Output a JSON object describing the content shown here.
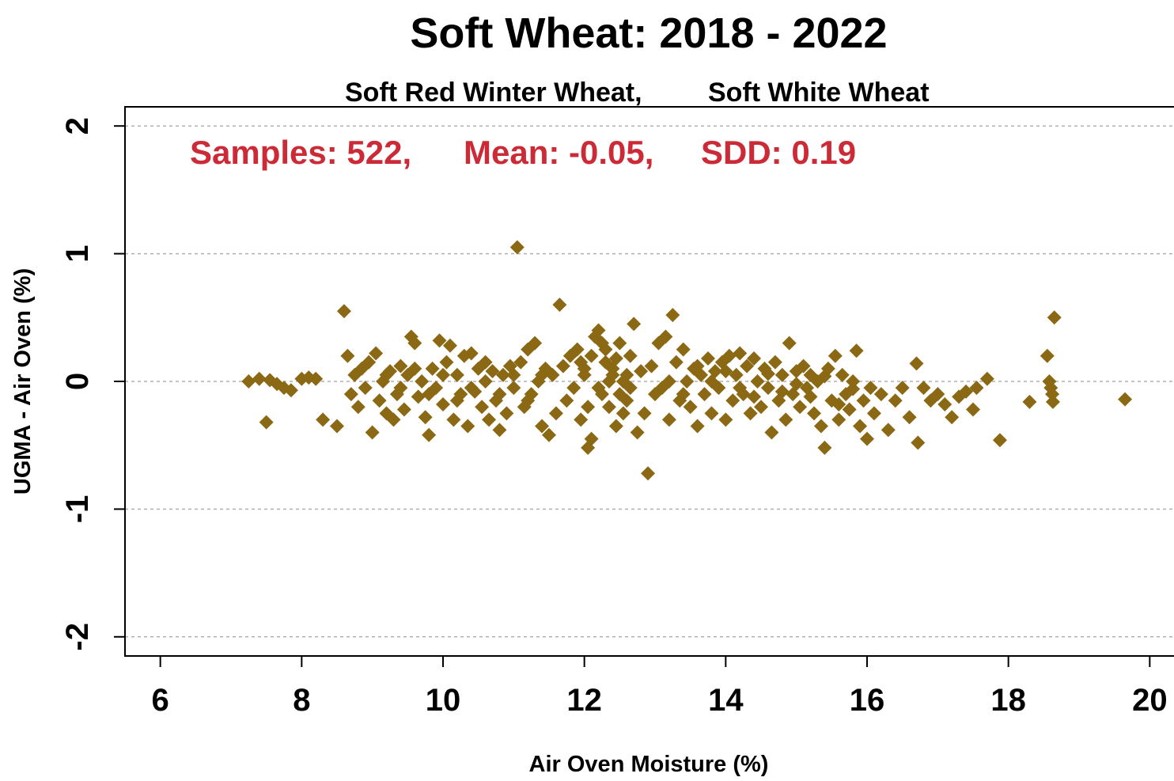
{
  "chart_data": {
    "type": "scatter",
    "title": "Soft Wheat: 2018 - 2022",
    "subtitle_parts": [
      "Soft Red Winter Wheat,",
      "Soft White Wheat"
    ],
    "stats": {
      "samples": "Samples: 522,",
      "mean": "Mean: -0.05,",
      "sdd": "SDD: 0.19"
    },
    "xlabel": "Air Oven Moisture (%)",
    "ylabel": "UGMA - Air Oven (%)",
    "xlim": [
      5.5,
      20.5
    ],
    "ylim": [
      -2.15,
      2.15
    ],
    "x_ticks": [
      6,
      8,
      10,
      12,
      14,
      16,
      18,
      20
    ],
    "y_ticks": [
      -2,
      -1,
      0,
      1,
      2
    ],
    "grid_lines_y": [
      -2,
      -1,
      0,
      1,
      2
    ],
    "grid": true,
    "marker": "diamond",
    "colors": {
      "point": "#8B6914",
      "stats": "#CC2A36",
      "grid": "#b0b0b0"
    },
    "points": [
      [
        7.25,
        0.0
      ],
      [
        7.4,
        0.02
      ],
      [
        7.55,
        0.01
      ],
      [
        7.65,
        -0.02
      ],
      [
        7.75,
        -0.05
      ],
      [
        7.85,
        -0.07
      ],
      [
        7.5,
        -0.32
      ],
      [
        8.0,
        0.02
      ],
      [
        8.1,
        0.03
      ],
      [
        8.2,
        0.02
      ],
      [
        8.3,
        -0.3
      ],
      [
        8.5,
        -0.35
      ],
      [
        8.6,
        0.55
      ],
      [
        8.65,
        0.2
      ],
      [
        8.7,
        -0.1
      ],
      [
        8.75,
        0.05
      ],
      [
        8.8,
        -0.2
      ],
      [
        8.85,
        0.1
      ],
      [
        8.9,
        -0.05
      ],
      [
        8.95,
        0.15
      ],
      [
        9.0,
        -0.4
      ],
      [
        9.05,
        0.22
      ],
      [
        9.1,
        -0.15
      ],
      [
        9.15,
        0.0
      ],
      [
        9.2,
        -0.25
      ],
      [
        9.25,
        0.08
      ],
      [
        9.3,
        -0.3
      ],
      [
        9.35,
        -0.1
      ],
      [
        9.4,
        0.12
      ],
      [
        9.45,
        -0.22
      ],
      [
        9.5,
        0.05
      ],
      [
        9.55,
        0.35
      ],
      [
        9.6,
        0.3
      ],
      [
        9.65,
        -0.12
      ],
      [
        9.7,
        0.0
      ],
      [
        9.75,
        -0.28
      ],
      [
        9.8,
        -0.42
      ],
      [
        9.85,
        0.1
      ],
      [
        9.9,
        -0.05
      ],
      [
        9.95,
        0.32
      ],
      [
        10.0,
        -0.18
      ],
      [
        10.05,
        0.15
      ],
      [
        10.1,
        0.28
      ],
      [
        10.15,
        -0.3
      ],
      [
        10.2,
        0.05
      ],
      [
        10.25,
        -0.1
      ],
      [
        10.3,
        0.2
      ],
      [
        10.35,
        -0.35
      ],
      [
        10.4,
        0.22
      ],
      [
        10.45,
        -0.08
      ],
      [
        10.5,
        0.1
      ],
      [
        10.55,
        -0.2
      ],
      [
        10.6,
        0.0
      ],
      [
        10.65,
        -0.3
      ],
      [
        10.7,
        0.08
      ],
      [
        10.75,
        -0.15
      ],
      [
        10.8,
        -0.38
      ],
      [
        10.85,
        0.05
      ],
      [
        10.9,
        -0.25
      ],
      [
        10.95,
        0.12
      ],
      [
        11.0,
        -0.05
      ],
      [
        11.05,
        1.05
      ],
      [
        11.1,
        0.15
      ],
      [
        11.15,
        -0.2
      ],
      [
        11.2,
        0.25
      ],
      [
        11.25,
        -0.1
      ],
      [
        11.3,
        0.3
      ],
      [
        11.35,
        0.0
      ],
      [
        11.4,
        -0.35
      ],
      [
        11.45,
        0.1
      ],
      [
        11.5,
        -0.42
      ],
      [
        11.55,
        0.05
      ],
      [
        11.6,
        -0.25
      ],
      [
        11.65,
        0.6
      ],
      [
        11.7,
        0.12
      ],
      [
        11.75,
        -0.15
      ],
      [
        11.8,
        0.2
      ],
      [
        11.85,
        -0.05
      ],
      [
        11.9,
        0.25
      ],
      [
        11.95,
        -0.3
      ],
      [
        12.0,
        0.1
      ],
      [
        12.05,
        -0.52
      ],
      [
        12.1,
        -0.45
      ],
      [
        12.15,
        0.35
      ],
      [
        12.2,
        0.4
      ],
      [
        12.25,
        -0.1
      ],
      [
        12.3,
        0.15
      ],
      [
        12.35,
        -0.2
      ],
      [
        12.4,
        0.05
      ],
      [
        12.45,
        -0.35
      ],
      [
        12.5,
        0.3
      ],
      [
        12.55,
        0.0
      ],
      [
        12.6,
        -0.15
      ],
      [
        12.65,
        0.2
      ],
      [
        12.7,
        0.45
      ],
      [
        12.75,
        -0.4
      ],
      [
        12.8,
        0.08
      ],
      [
        12.85,
        -0.25
      ],
      [
        12.9,
        -0.72
      ],
      [
        12.95,
        0.12
      ],
      [
        13.0,
        -0.1
      ],
      [
        13.05,
        0.3
      ],
      [
        13.1,
        -0.05
      ],
      [
        13.15,
        0.35
      ],
      [
        13.2,
        -0.3
      ],
      [
        13.25,
        0.52
      ],
      [
        13.3,
        0.15
      ],
      [
        13.35,
        -0.15
      ],
      [
        13.4,
        0.25
      ],
      [
        13.45,
        0.0
      ],
      [
        13.5,
        -0.2
      ],
      [
        13.55,
        0.1
      ],
      [
        13.6,
        -0.35
      ],
      [
        13.65,
        0.05
      ],
      [
        13.7,
        -0.1
      ],
      [
        13.75,
        0.18
      ],
      [
        13.8,
        -0.25
      ],
      [
        13.85,
        0.08
      ],
      [
        13.9,
        -0.05
      ],
      [
        13.95,
        0.15
      ],
      [
        14.0,
        -0.3
      ],
      [
        14.05,
        0.2
      ],
      [
        14.1,
        -0.15
      ],
      [
        14.15,
        0.05
      ],
      [
        14.2,
        0.22
      ],
      [
        14.25,
        -0.1
      ],
      [
        14.3,
        0.12
      ],
      [
        14.35,
        -0.25
      ],
      [
        14.4,
        0.18
      ],
      [
        14.45,
        0.0
      ],
      [
        14.5,
        -0.2
      ],
      [
        14.55,
        0.1
      ],
      [
        14.6,
        -0.05
      ],
      [
        14.65,
        -0.4
      ],
      [
        14.7,
        0.15
      ],
      [
        14.75,
        -0.15
      ],
      [
        14.8,
        0.05
      ],
      [
        14.85,
        -0.3
      ],
      [
        14.9,
        0.3
      ],
      [
        14.95,
        -0.1
      ],
      [
        15.0,
        0.08
      ],
      [
        15.05,
        -0.2
      ],
      [
        15.1,
        0.12
      ],
      [
        15.15,
        -0.05
      ],
      [
        15.2,
        0.05
      ],
      [
        15.25,
        -0.25
      ],
      [
        15.3,
        0.0
      ],
      [
        15.35,
        -0.35
      ],
      [
        15.4,
        -0.52
      ],
      [
        15.45,
        0.1
      ],
      [
        15.5,
        -0.15
      ],
      [
        15.55,
        0.2
      ],
      [
        15.6,
        -0.3
      ],
      [
        15.65,
        0.05
      ],
      [
        15.7,
        -0.1
      ],
      [
        15.75,
        -0.22
      ],
      [
        15.8,
        0.0
      ],
      [
        15.85,
        0.24
      ],
      [
        15.9,
        -0.35
      ],
      [
        15.95,
        -0.15
      ],
      [
        16.0,
        -0.45
      ],
      [
        16.05,
        -0.05
      ],
      [
        16.1,
        -0.25
      ],
      [
        16.2,
        -0.1
      ],
      [
        16.3,
        -0.38
      ],
      [
        16.4,
        -0.15
      ],
      [
        16.5,
        -0.05
      ],
      [
        16.6,
        -0.28
      ],
      [
        16.7,
        0.14
      ],
      [
        16.72,
        -0.48
      ],
      [
        16.8,
        -0.05
      ],
      [
        16.9,
        -0.15
      ],
      [
        17.0,
        -0.1
      ],
      [
        17.1,
        -0.18
      ],
      [
        17.2,
        -0.28
      ],
      [
        17.3,
        -0.12
      ],
      [
        17.4,
        -0.08
      ],
      [
        17.5,
        -0.22
      ],
      [
        17.55,
        -0.05
      ],
      [
        17.7,
        0.02
      ],
      [
        17.88,
        -0.46
      ],
      [
        18.3,
        -0.16
      ],
      [
        18.55,
        0.2
      ],
      [
        18.58,
        0.0
      ],
      [
        18.6,
        -0.05
      ],
      [
        18.62,
        -0.1
      ],
      [
        18.63,
        -0.16
      ],
      [
        18.65,
        0.5
      ],
      [
        19.65,
        -0.14
      ],
      [
        12.0,
        0.05
      ],
      [
        12.1,
        0.2
      ],
      [
        12.2,
        -0.05
      ],
      [
        12.3,
        0.25
      ],
      [
        12.4,
        0.1
      ],
      [
        12.5,
        -0.1
      ],
      [
        12.6,
        0.05
      ],
      [
        11.95,
        0.15
      ],
      [
        12.05,
        -0.2
      ],
      [
        12.25,
        0.3
      ],
      [
        12.35,
        0.0
      ],
      [
        12.45,
        0.18
      ],
      [
        12.55,
        -0.25
      ],
      [
        12.65,
        -0.05
      ],
      [
        10.2,
        -0.15
      ],
      [
        10.4,
        -0.05
      ],
      [
        10.6,
        0.15
      ],
      [
        10.8,
        -0.1
      ],
      [
        11.0,
        0.05
      ],
      [
        11.2,
        -0.15
      ],
      [
        11.4,
        0.05
      ],
      [
        9.2,
        0.05
      ],
      [
        9.4,
        -0.05
      ],
      [
        9.6,
        0.1
      ],
      [
        9.8,
        -0.1
      ],
      [
        10.0,
        0.05
      ],
      [
        13.2,
        0.0
      ],
      [
        13.4,
        -0.1
      ],
      [
        13.6,
        0.12
      ],
      [
        13.8,
        0.0
      ],
      [
        14.0,
        0.08
      ],
      [
        14.2,
        -0.05
      ],
      [
        14.4,
        -0.12
      ],
      [
        14.6,
        0.06
      ],
      [
        14.8,
        -0.08
      ],
      [
        15.0,
        -0.02
      ],
      [
        15.2,
        -0.12
      ],
      [
        15.4,
        0.04
      ],
      [
        15.6,
        -0.18
      ],
      [
        15.8,
        -0.06
      ]
    ]
  }
}
